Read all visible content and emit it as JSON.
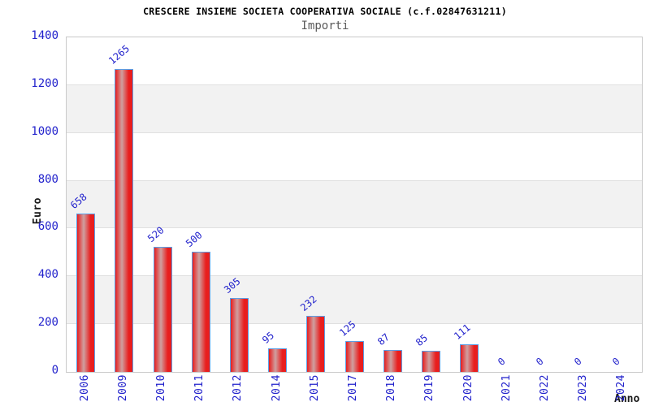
{
  "chart_data": {
    "type": "bar",
    "title": "CRESCERE INSIEME SOCIETA COOPERATIVA SOCIALE (c.f.02847631211)",
    "subtitle": "Importi",
    "xlabel": "Anno",
    "ylabel": "Euro",
    "categories": [
      "2006",
      "2009",
      "2010",
      "2011",
      "2012",
      "2014",
      "2015",
      "2017",
      "2018",
      "2019",
      "2020",
      "2021",
      "2022",
      "2023",
      "2024"
    ],
    "values": [
      658,
      1265,
      520,
      500,
      305,
      95,
      232,
      125,
      87,
      85,
      111,
      0,
      0,
      0,
      0
    ],
    "ylim": [
      0,
      1400
    ],
    "yticks": [
      0,
      200,
      400,
      600,
      800,
      1000,
      1200,
      1400
    ],
    "grid": "horizontal gridlines every 200 with alternating white/gray bands",
    "legend_position": "none",
    "bar_value_labels_rotated_deg": -40,
    "x_tick_labels_rotated_deg": -90
  },
  "colors": {
    "background": "#ffffff",
    "title": "#000000",
    "subtitle": "#5a5a5a",
    "axis_label": "#1a1a1a",
    "tick_label": "#2222cc",
    "value_label": "#2222cc",
    "plot_border": "#c9c9c9",
    "grid_line": "#e0e0e0",
    "band_gray": "#f2f2f2",
    "band_white": "#ffffff",
    "bar_border": "#5b9fe6",
    "bar_red": "#e81e1e",
    "bar_highlight": "#cfa0a0"
  }
}
